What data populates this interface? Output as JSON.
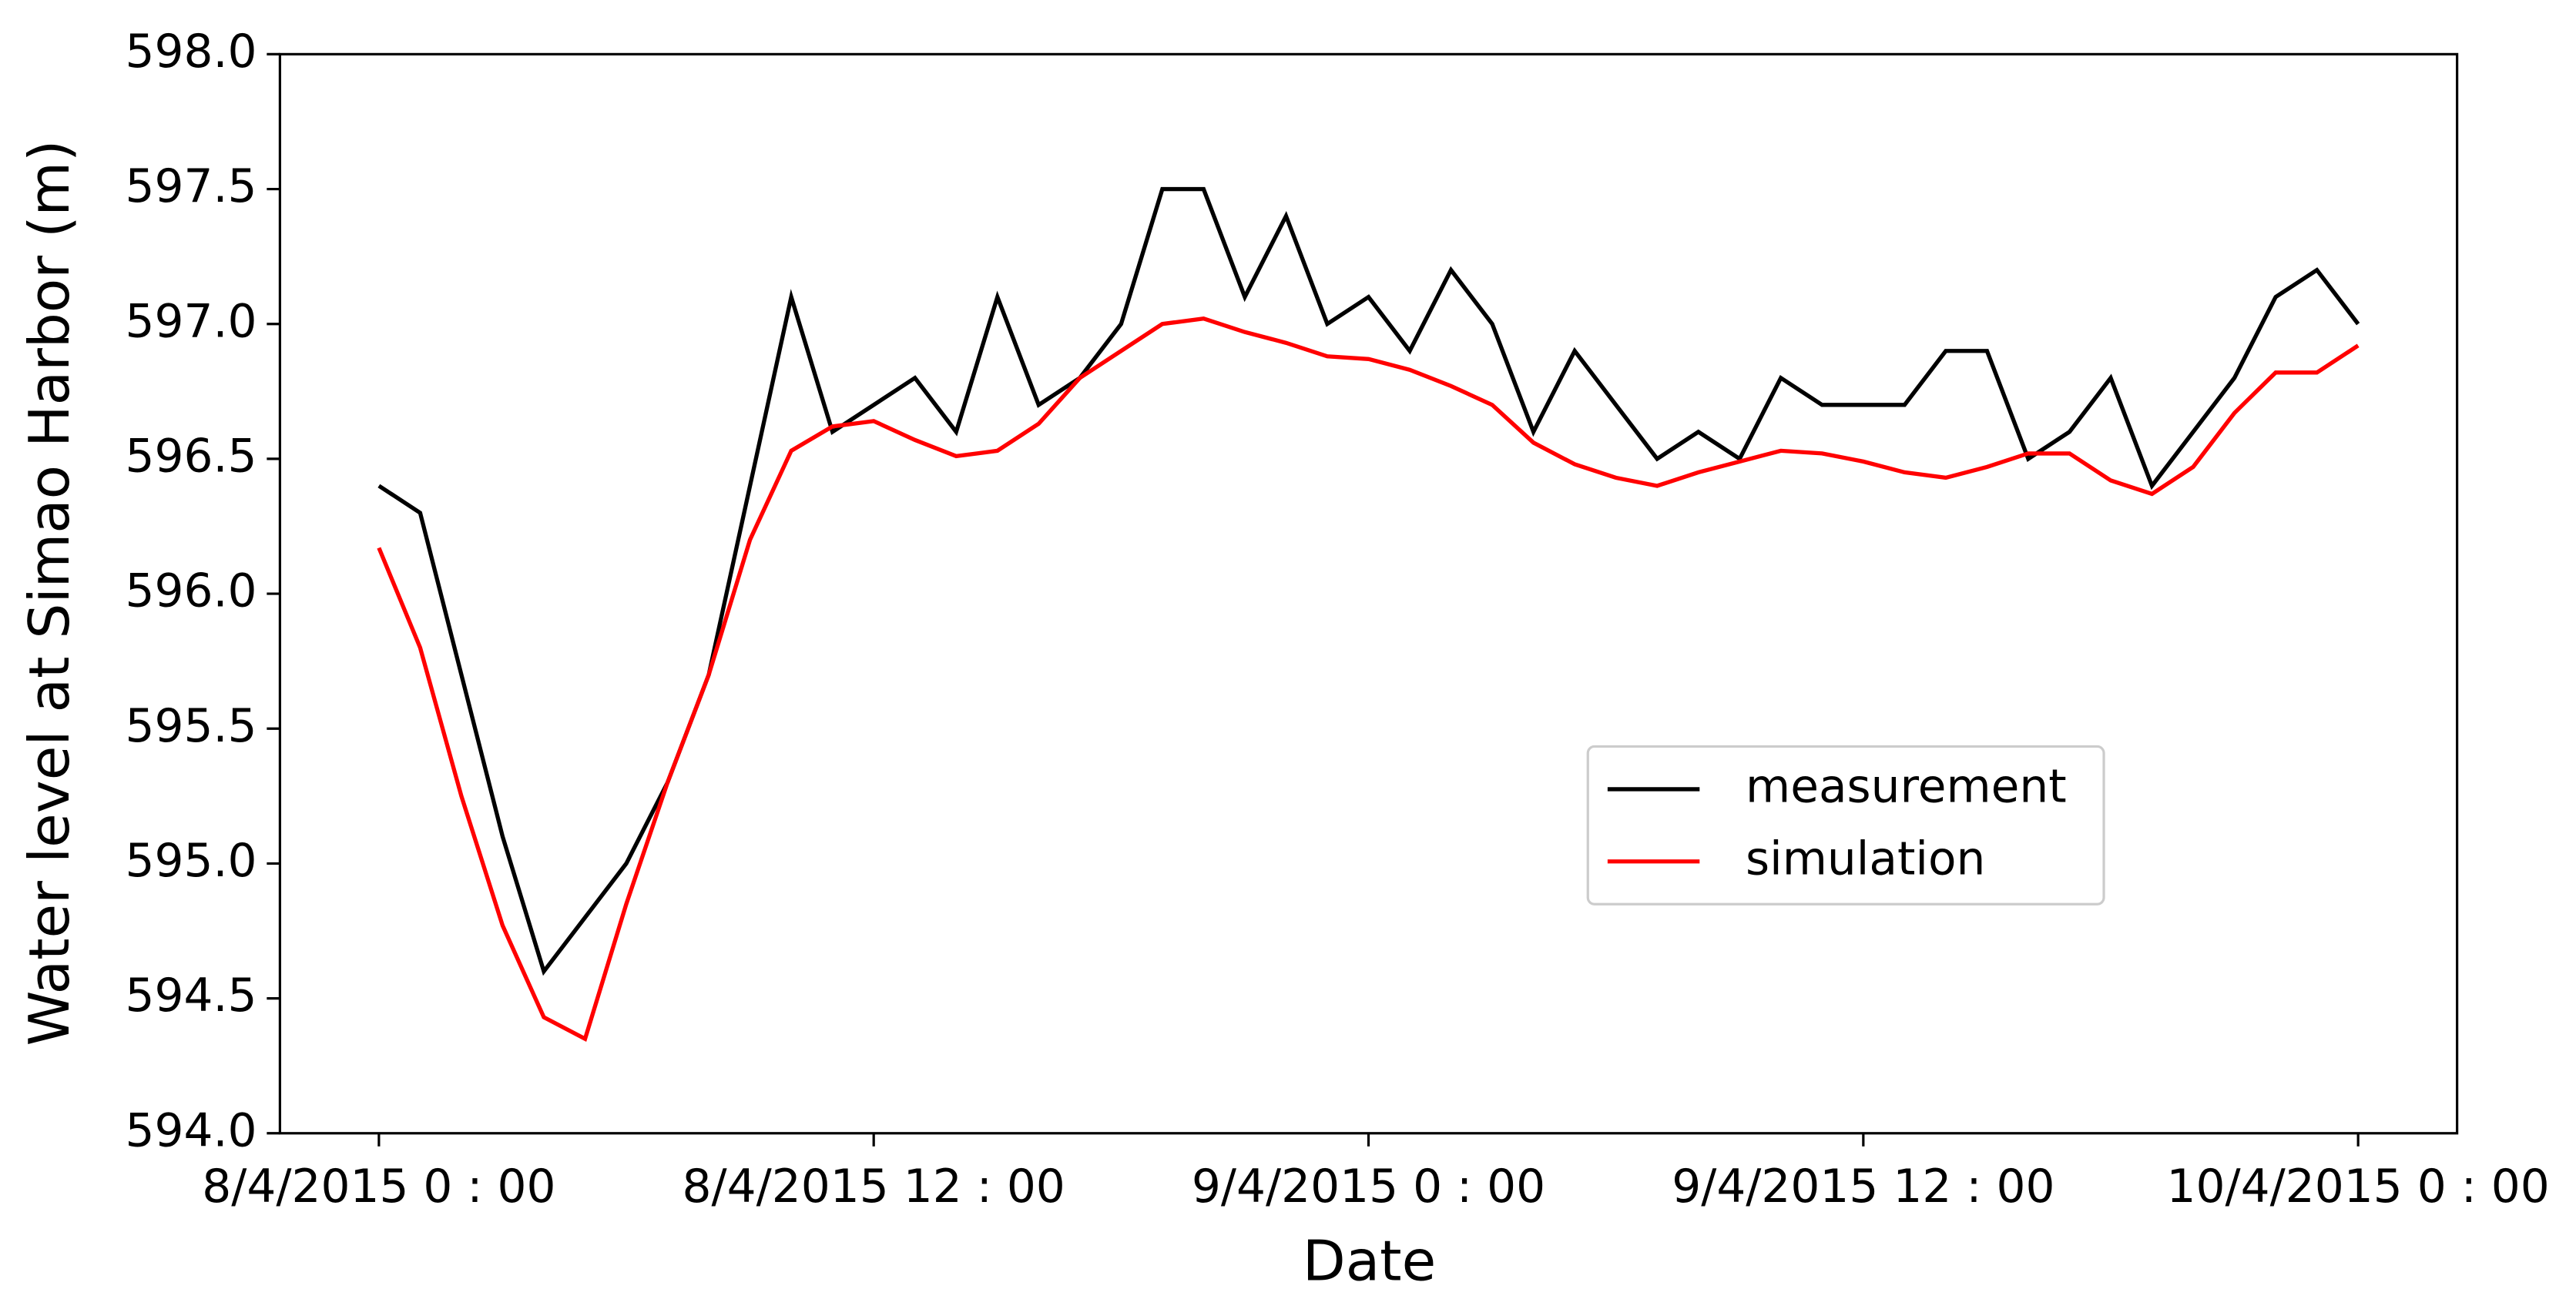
{
  "chart_data": {
    "type": "line",
    "x_label": "Date",
    "y_label": "Water level at Simao Harbor (m)",
    "x": [
      0,
      1,
      2,
      3,
      4,
      5,
      6,
      7,
      8,
      9,
      10,
      11,
      12,
      13,
      14,
      15,
      16,
      17,
      18,
      19,
      20,
      21,
      22,
      23,
      24,
      25,
      26,
      27,
      28,
      29,
      30,
      31,
      32,
      33,
      34,
      35,
      36,
      37,
      38,
      39,
      40,
      41,
      42,
      43,
      44,
      45,
      46,
      47,
      48
    ],
    "series": [
      {
        "name": "measurement",
        "color": "#000000",
        "values": [
          596.4,
          596.3,
          595.7,
          595.1,
          594.6,
          594.8,
          595.0,
          595.3,
          595.7,
          596.4,
          597.1,
          596.6,
          596.7,
          596.8,
          596.6,
          597.1,
          596.7,
          596.8,
          597.0,
          597.5,
          597.5,
          597.1,
          597.4,
          597.0,
          597.1,
          596.9,
          597.2,
          597.0,
          596.6,
          596.9,
          596.7,
          596.5,
          596.6,
          596.5,
          596.8,
          596.7,
          596.7,
          596.7,
          596.9,
          596.9,
          596.5,
          596.6,
          596.8,
          596.4,
          596.6,
          596.8,
          597.1,
          597.2,
          597.0
        ]
      },
      {
        "name": "simulation",
        "color": "#ff0000",
        "values": [
          596.17,
          595.8,
          595.25,
          594.77,
          594.43,
          594.35,
          594.85,
          595.3,
          595.7,
          596.2,
          596.53,
          596.62,
          596.64,
          596.57,
          596.51,
          596.53,
          596.63,
          596.8,
          596.9,
          597.0,
          597.02,
          596.97,
          596.93,
          596.88,
          596.87,
          596.83,
          596.77,
          596.7,
          596.56,
          596.48,
          596.43,
          596.4,
          596.45,
          596.49,
          596.53,
          596.52,
          596.49,
          596.45,
          596.43,
          596.47,
          596.52,
          596.52,
          596.42,
          596.37,
          596.47,
          596.67,
          596.82,
          596.82,
          596.92
        ]
      }
    ],
    "xlim": [
      -2.4,
      50.4
    ],
    "xticks": [
      {
        "value": 0,
        "label": "8/4/2015 0 : 00"
      },
      {
        "value": 12,
        "label": "8/4/2015 12 : 00"
      },
      {
        "value": 24,
        "label": "9/4/2015 0 : 00"
      },
      {
        "value": 36,
        "label": "9/4/2015 12 : 00"
      },
      {
        "value": 48,
        "label": "10/4/2015 0 : 00"
      }
    ],
    "ylim": [
      594.0,
      598.0
    ],
    "yticks": [
      {
        "value": 594,
        "label": "594.0"
      },
      {
        "value": 594.5,
        "label": "594.5"
      },
      {
        "value": 595,
        "label": "595.0"
      },
      {
        "value": 595.5,
        "label": "595.5"
      },
      {
        "value": 596,
        "label": "596.0"
      },
      {
        "value": 596.5,
        "label": "596.5"
      },
      {
        "value": 597,
        "label": "597.0"
      },
      {
        "value": 597.5,
        "label": "597.5"
      },
      {
        "value": 598,
        "label": "598.0"
      }
    ],
    "grid": false,
    "legend_loc": "center right"
  }
}
